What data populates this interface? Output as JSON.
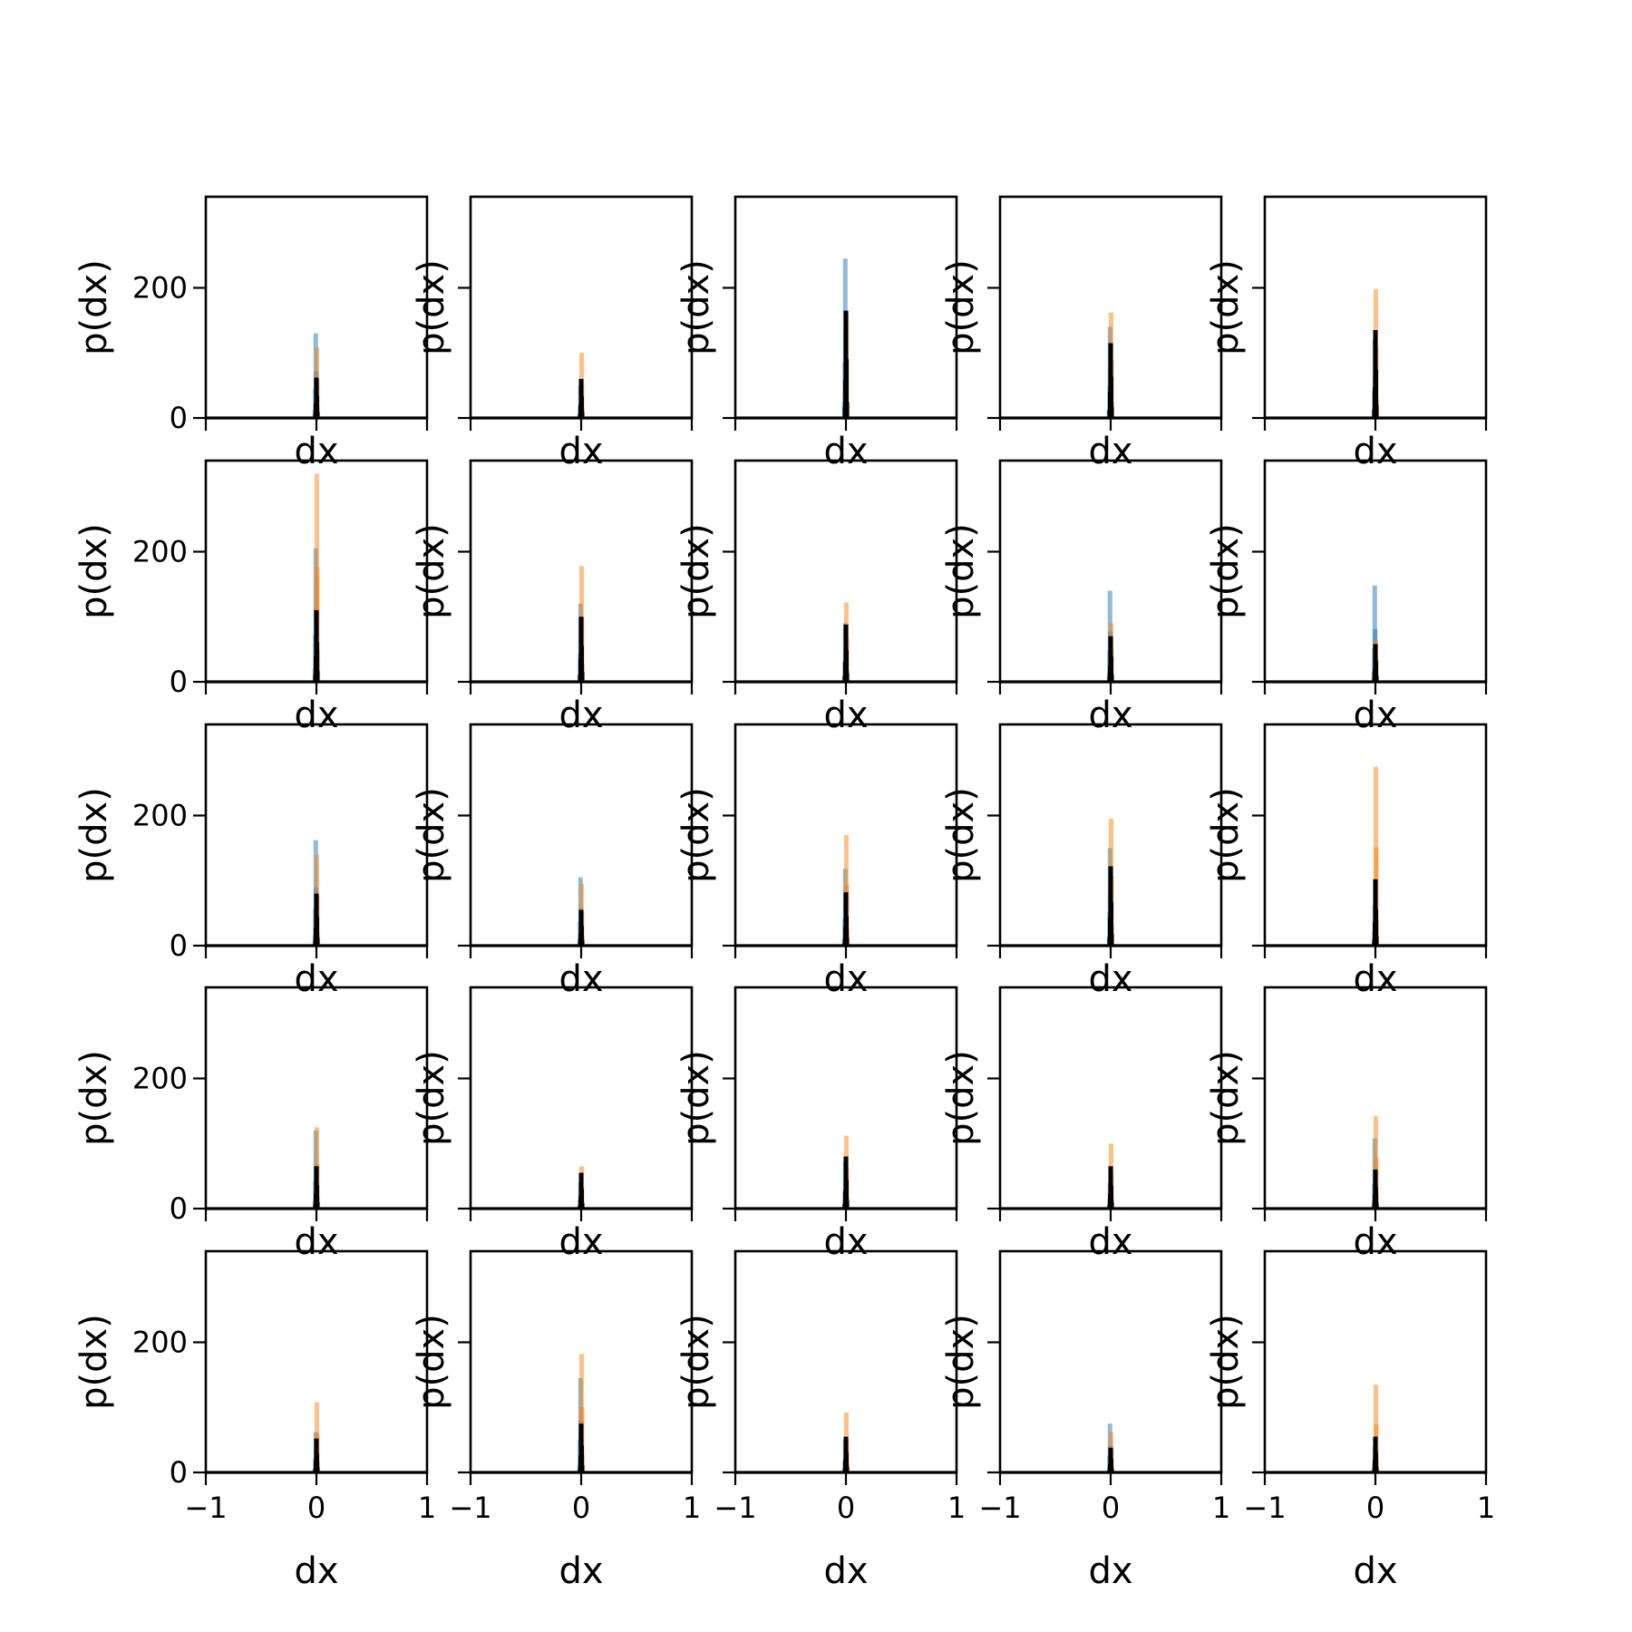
{
  "chart_data": {
    "type": "bar",
    "layout": "5x5 small-multiple histogram grid",
    "xlabel": "dx",
    "ylabel": "p(dx)",
    "xlim": [
      -1,
      1
    ],
    "ylim": [
      0,
      340
    ],
    "x_ticks": [
      -1,
      0,
      1
    ],
    "x_tick_labels": [
      "−1",
      "0",
      "1"
    ],
    "y_ticks": [
      0,
      200
    ],
    "y_tick_labels": [
      "0",
      "200"
    ],
    "grid": false,
    "legend": "none",
    "colors": {
      "series_a": "#1f77b4",
      "series_b": "#ff7f0e",
      "series_c": "#000000"
    },
    "series_alpha": {
      "series_a": 0.5,
      "series_b": 0.5,
      "series_c": 1.0
    },
    "panels": [
      {
        "row": 0,
        "col": 0,
        "peaks": {
          "series_a": 130,
          "series_b": 108,
          "series_c": 62
        }
      },
      {
        "row": 0,
        "col": 1,
        "peaks": {
          "series_a": 50,
          "series_b": 100,
          "series_c": 60
        }
      },
      {
        "row": 0,
        "col": 2,
        "peaks": {
          "series_a": 245,
          "series_b": 160,
          "series_c": 165
        }
      },
      {
        "row": 0,
        "col": 3,
        "peaks": {
          "series_a": 140,
          "series_b": 162,
          "series_c": 115
        }
      },
      {
        "row": 0,
        "col": 4,
        "peaks": {
          "series_a": 120,
          "series_b": 198,
          "series_c": 135
        }
      },
      {
        "row": 1,
        "col": 0,
        "peaks": {
          "series_a": 205,
          "series_b": 320,
          "series_c": 110
        }
      },
      {
        "row": 1,
        "col": 1,
        "peaks": {
          "series_a": 120,
          "series_b": 178,
          "series_c": 100
        }
      },
      {
        "row": 1,
        "col": 2,
        "peaks": {
          "series_a": 90,
          "series_b": 122,
          "series_c": 88
        }
      },
      {
        "row": 1,
        "col": 3,
        "peaks": {
          "series_a": 140,
          "series_b": 90,
          "series_c": 70
        }
      },
      {
        "row": 1,
        "col": 4,
        "peaks": {
          "series_a": 148,
          "series_b": 65,
          "series_c": 58
        }
      },
      {
        "row": 2,
        "col": 0,
        "peaks": {
          "series_a": 162,
          "series_b": 140,
          "series_c": 80
        }
      },
      {
        "row": 2,
        "col": 1,
        "peaks": {
          "series_a": 105,
          "series_b": 95,
          "series_c": 55
        }
      },
      {
        "row": 2,
        "col": 2,
        "peaks": {
          "series_a": 118,
          "series_b": 170,
          "series_c": 82
        }
      },
      {
        "row": 2,
        "col": 3,
        "peaks": {
          "series_a": 150,
          "series_b": 195,
          "series_c": 122
        }
      },
      {
        "row": 2,
        "col": 4,
        "peaks": {
          "series_a": 62,
          "series_b": 275,
          "series_c": 102
        }
      },
      {
        "row": 3,
        "col": 0,
        "peaks": {
          "series_a": 120,
          "series_b": 125,
          "series_c": 65
        }
      },
      {
        "row": 3,
        "col": 1,
        "peaks": {
          "series_a": 40,
          "series_b": 65,
          "series_c": 55
        }
      },
      {
        "row": 3,
        "col": 2,
        "peaks": {
          "series_a": 72,
          "series_b": 112,
          "series_c": 80
        }
      },
      {
        "row": 3,
        "col": 3,
        "peaks": {
          "series_a": 40,
          "series_b": 100,
          "series_c": 65
        }
      },
      {
        "row": 3,
        "col": 4,
        "peaks": {
          "series_a": 108,
          "series_b": 142,
          "series_c": 60
        }
      },
      {
        "row": 4,
        "col": 0,
        "peaks": {
          "series_a": 62,
          "series_b": 108,
          "series_c": 52
        }
      },
      {
        "row": 4,
        "col": 1,
        "peaks": {
          "series_a": 145,
          "series_b": 182,
          "series_c": 75
        }
      },
      {
        "row": 4,
        "col": 2,
        "peaks": {
          "series_a": 50,
          "series_b": 92,
          "series_c": 55
        }
      },
      {
        "row": 4,
        "col": 3,
        "peaks": {
          "series_a": 75,
          "series_b": 62,
          "series_c": 38
        }
      },
      {
        "row": 4,
        "col": 4,
        "peaks": {
          "series_a": 40,
          "series_b": 135,
          "series_c": 55
        }
      }
    ]
  }
}
